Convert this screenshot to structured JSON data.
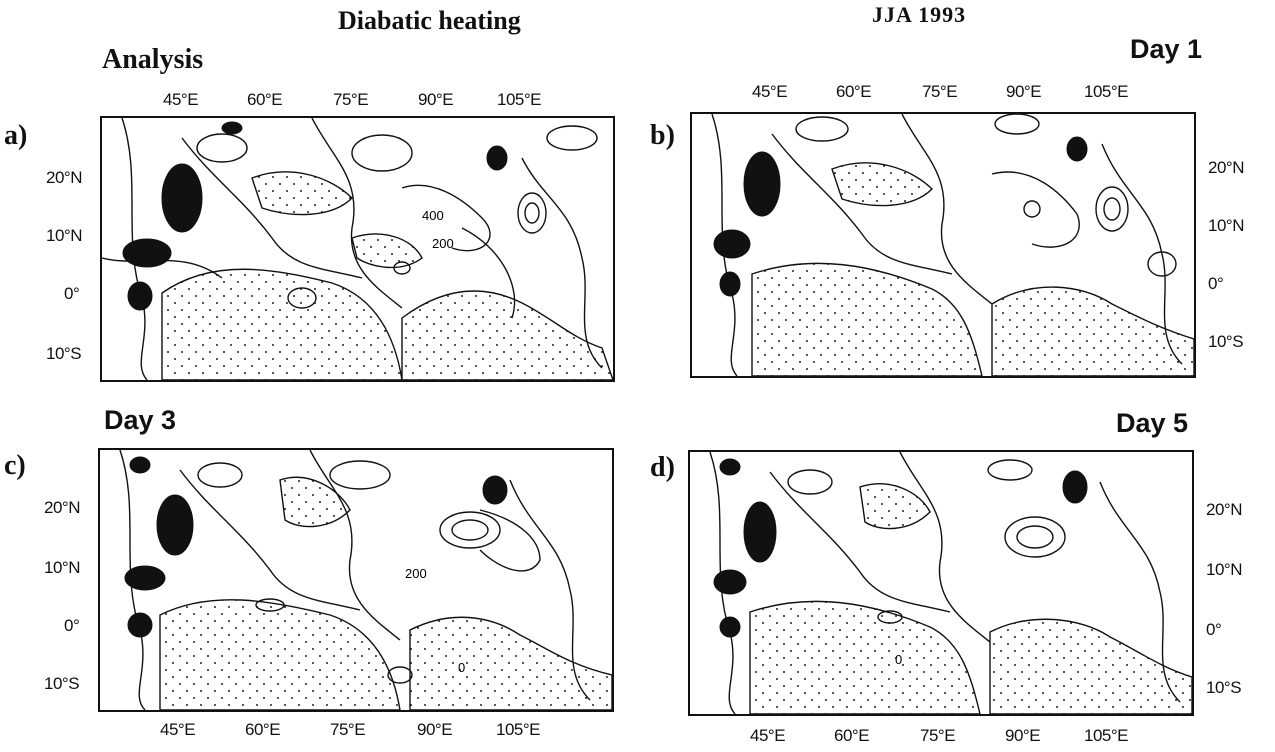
{
  "figure": {
    "title": "Diabatic heating",
    "period": "JJA  1993"
  },
  "axes": {
    "lon_ticks": [
      "45°E",
      "60°E",
      "75°E",
      "90°E",
      "105°E"
    ],
    "lat_ticks": [
      "20°N",
      "10°N",
      "0°",
      "10°S"
    ]
  },
  "panels": [
    {
      "letter": "a)",
      "title": "Analysis",
      "contour_labels": [
        "400",
        "200"
      ]
    },
    {
      "letter": "b)",
      "title": "Day 1",
      "contour_labels": []
    },
    {
      "letter": "c)",
      "title": "Day 3",
      "contour_labels": [
        "200",
        "0"
      ]
    },
    {
      "letter": "d)",
      "title": "Day 5",
      "contour_labels": [
        "0"
      ]
    }
  ]
}
